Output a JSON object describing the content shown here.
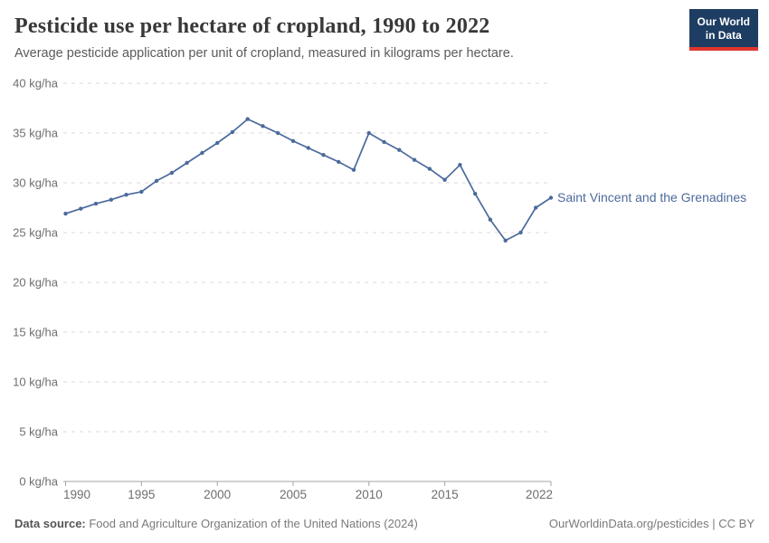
{
  "header": {
    "logo": {
      "line1": "Our World",
      "line2": "in Data",
      "bg_color": "#1d3d63",
      "accent_color": "#e0362d"
    }
  },
  "chart_data": {
    "type": "line",
    "title": "Pesticide use per hectare of cropland, 1990 to 2022",
    "subtitle": "Average pesticide application per unit of cropland, measured in kilograms per hectare.",
    "x": [
      1990,
      1991,
      1992,
      1993,
      1994,
      1995,
      1996,
      1997,
      1998,
      1999,
      2000,
      2001,
      2002,
      2003,
      2004,
      2005,
      2006,
      2007,
      2008,
      2009,
      2010,
      2011,
      2012,
      2013,
      2014,
      2015,
      2016,
      2017,
      2018,
      2019,
      2020,
      2021,
      2022
    ],
    "series": [
      {
        "name": "Saint Vincent and the Grenadines",
        "color": "#4c6a9c",
        "values": [
          26.9,
          27.4,
          27.9,
          28.3,
          28.8,
          29.1,
          30.2,
          31.0,
          32.0,
          33.0,
          34.0,
          35.1,
          36.4,
          35.7,
          35.0,
          34.2,
          33.5,
          32.8,
          32.1,
          31.3,
          35.0,
          34.1,
          33.3,
          32.3,
          31.4,
          30.3,
          31.8,
          28.9,
          26.3,
          24.2,
          25.0,
          27.5,
          28.5
        ]
      }
    ],
    "xlabel": "",
    "ylabel": "kg/ha",
    "ylim": [
      0,
      40
    ],
    "yticks": [
      0,
      5,
      10,
      15,
      20,
      25,
      30,
      35,
      40
    ],
    "ytick_suffix": " kg/ha",
    "xticks": [
      1990,
      1995,
      2000,
      2005,
      2010,
      2015,
      2022
    ],
    "grid": "horizontal-dashed",
    "legend": "line-end-label",
    "colors": {
      "gridline": "#d9d9d9",
      "axis": "#a3a3a3",
      "tick_label": "#6e6e6e"
    }
  },
  "footer": {
    "datasource_label": "Data source:",
    "datasource_text": " Food and Agriculture Organization of the United Nations (2024)",
    "credit": "OurWorldinData.org/pesticides | CC BY"
  }
}
